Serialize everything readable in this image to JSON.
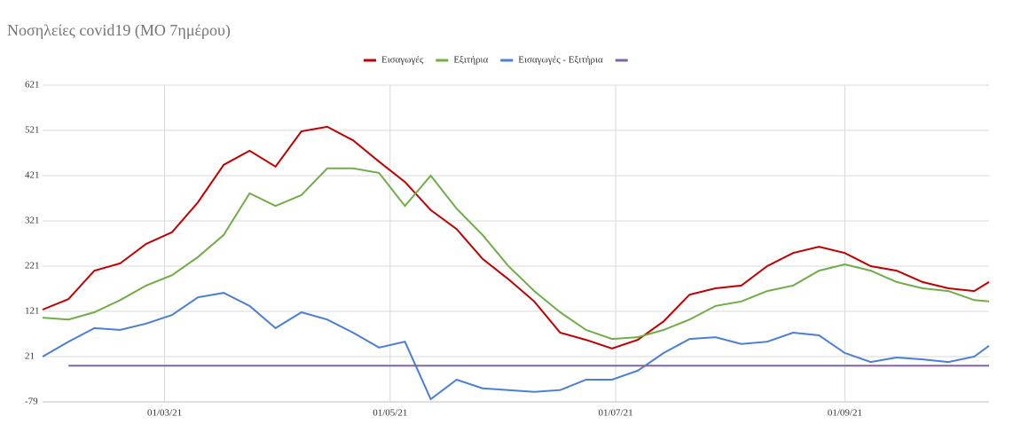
{
  "chart_data": {
    "type": "line",
    "title": "Νοσηλείες covid19 (ΜΟ 7ημέρου)",
    "x": [
      "27/01/21",
      "03/02/21",
      "10/02/21",
      "17/02/21",
      "24/02/21",
      "03/03/21",
      "10/03/21",
      "17/03/21",
      "24/03/21",
      "31/03/21",
      "07/04/21",
      "14/04/21",
      "21/04/21",
      "28/04/21",
      "05/05/21",
      "12/05/21",
      "19/05/21",
      "26/05/21",
      "02/06/21",
      "09/06/21",
      "16/06/21",
      "23/06/21",
      "30/06/21",
      "07/07/21",
      "14/07/21",
      "21/07/21",
      "28/07/21",
      "04/08/21",
      "11/08/21",
      "18/08/21",
      "25/08/21",
      "01/09/21",
      "08/09/21",
      "15/09/21",
      "22/09/21",
      "29/09/21",
      "06/10/21",
      "10/10/21"
    ],
    "xlim": [
      "27/01/21",
      "10/10/21"
    ],
    "xticks": [
      "01/03/21",
      "01/05/21",
      "01/07/21",
      "01/09/21"
    ],
    "ylim": [
      -79,
      621
    ],
    "yticks": [
      -79,
      21,
      121,
      221,
      321,
      421,
      521,
      621
    ],
    "grid": true,
    "legend": "top",
    "series": [
      {
        "name": "Εισαγωγές",
        "color": "#c00000",
        "values": [
          125,
          148,
          211,
          227,
          270,
          296,
          362,
          445,
          476,
          441,
          519,
          529,
          499,
          452,
          407,
          345,
          303,
          237,
          192,
          143,
          74,
          58,
          39,
          58,
          99,
          158,
          172,
          178,
          221,
          250,
          264,
          250,
          221,
          211,
          186,
          172,
          166,
          186
        ]
      },
      {
        "name": "Εξιτήρια",
        "color": "#70ad47",
        "values": [
          107,
          103,
          119,
          146,
          178,
          201,
          241,
          290,
          382,
          354,
          378,
          437,
          437,
          427,
          354,
          421,
          348,
          290,
          221,
          166,
          119,
          80,
          60,
          64,
          80,
          103,
          133,
          143,
          166,
          178,
          211,
          225,
          211,
          186,
          172,
          166,
          146,
          143
        ]
      },
      {
        "name": "Εισαγωγές - Εξιτήρια",
        "color": "#4a7fd4",
        "values": [
          21,
          54,
          84,
          80,
          94,
          113,
          152,
          162,
          133,
          84,
          119,
          103,
          74,
          41,
          54,
          -73,
          -30,
          -49,
          -53,
          -57,
          -53,
          -30,
          -30,
          -10,
          29,
          60,
          64,
          49,
          54,
          74,
          68,
          29,
          9,
          19,
          15,
          9,
          21,
          45
        ]
      },
      {
        "color": "#8064a2",
        "values": [
          null,
          1,
          1,
          1,
          1,
          1,
          1,
          1,
          1,
          1,
          1,
          1,
          1,
          1,
          1,
          1,
          1,
          1,
          1,
          1,
          1,
          1,
          1,
          1,
          1,
          1,
          1,
          1,
          1,
          1,
          1,
          1,
          1,
          1,
          1,
          1,
          1,
          1
        ]
      }
    ]
  }
}
